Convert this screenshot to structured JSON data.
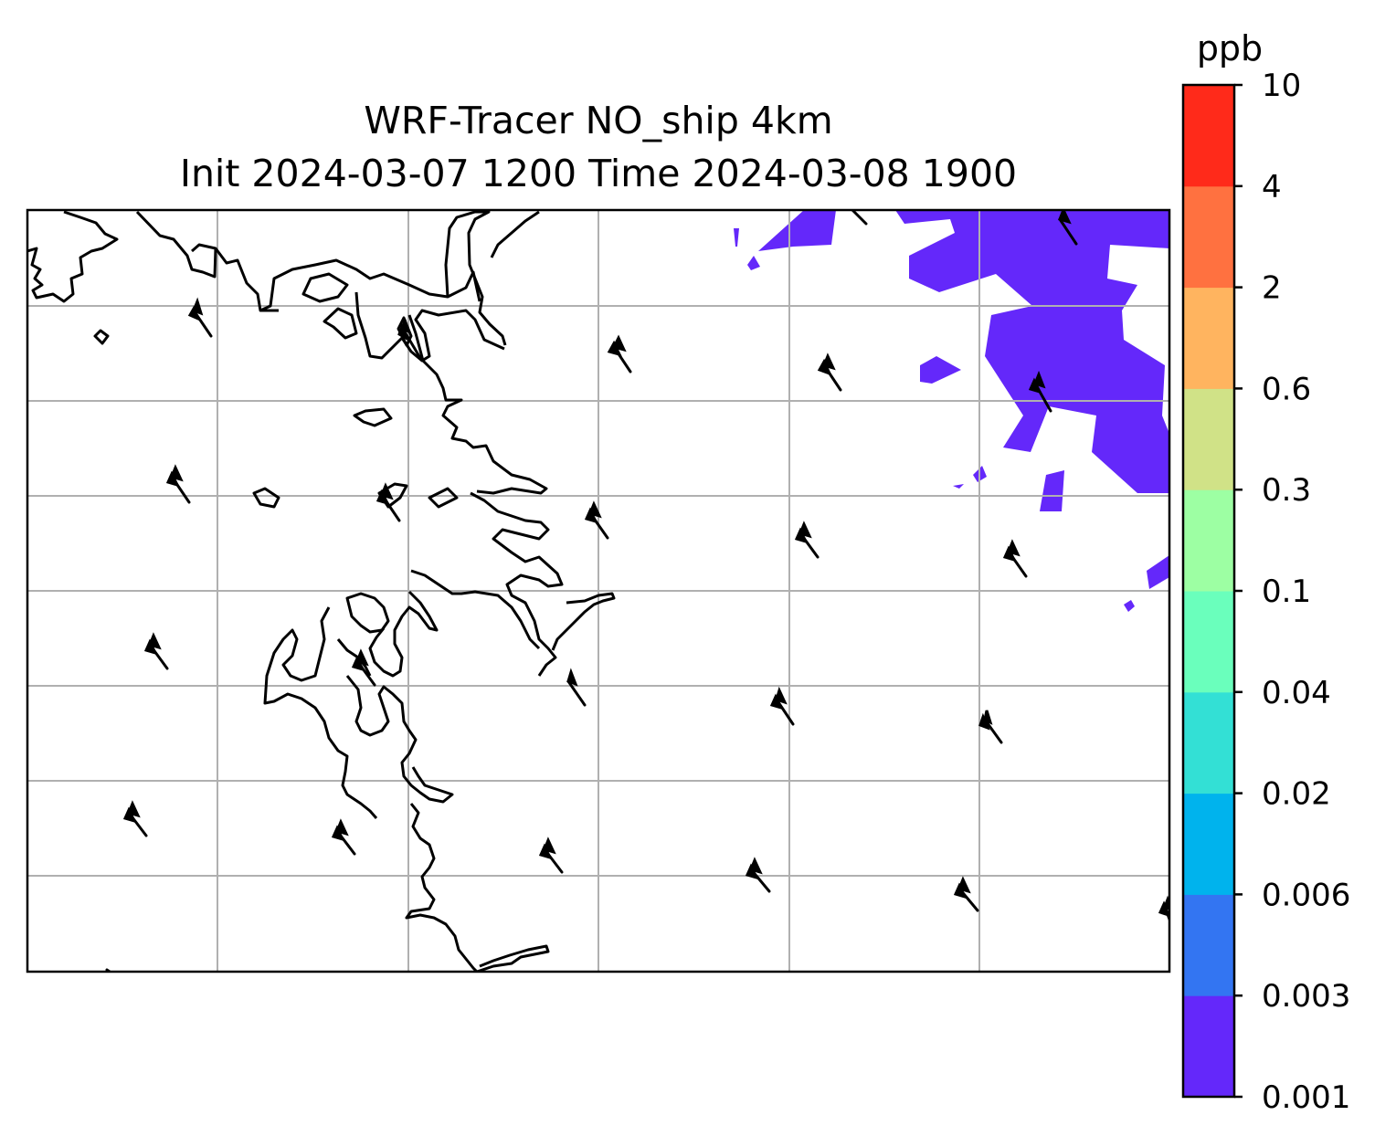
{
  "title": {
    "line1": "WRF-Tracer NO_ship 4km",
    "line2": "Init 2024-03-07 1200 Time 2024-03-08 1900"
  },
  "colorbar": {
    "unit": "ppb",
    "ticks": [
      "0.001",
      "0.003",
      "0.006",
      "0.02",
      "0.04",
      "0.1",
      "0.3",
      "0.6",
      "2",
      "4",
      "10"
    ],
    "colors": [
      "#6428fa",
      "#3375f2",
      "#00b3ed",
      "#33e0d5",
      "#6affbc",
      "#9dffa3",
      "#d0e287",
      "#ffb45f",
      "#ff7140",
      "#ff2a1a"
    ]
  },
  "map": {
    "gridlines": true,
    "tracer_color": "#6428fa",
    "coastline_color": "#000000",
    "wind_barb_color": "#000000"
  }
}
